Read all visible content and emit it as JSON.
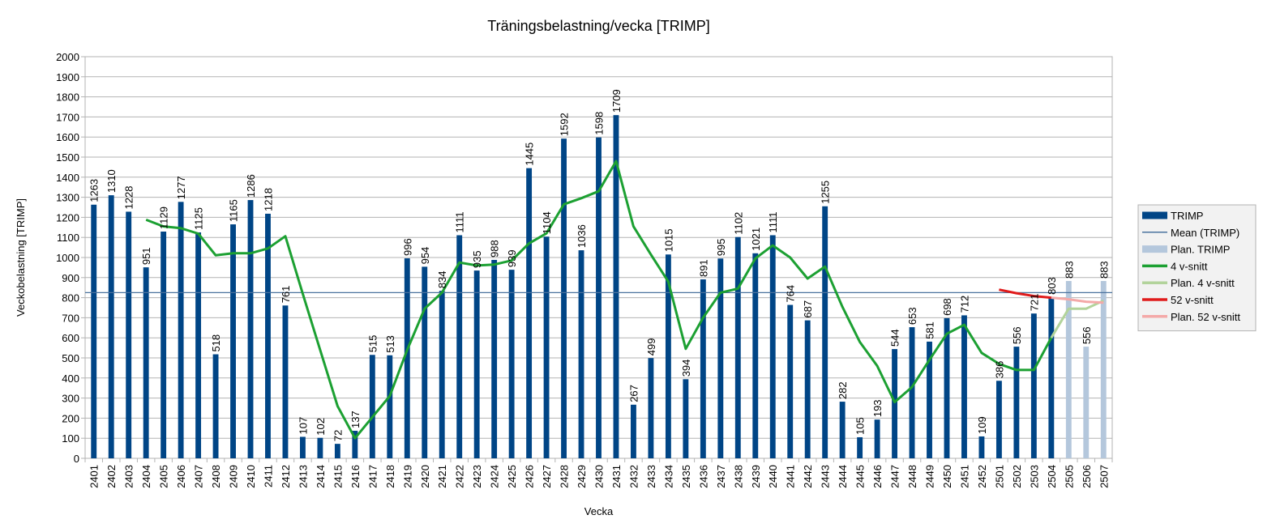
{
  "chart_data": {
    "type": "bar",
    "title": "Träningsbelastning/vecka [TRIMP]",
    "xlabel": "Vecka",
    "ylabel": "Veckobelastning [TRIMP]",
    "ylim": [
      0,
      2000
    ],
    "ytick_step": 100,
    "grid": true,
    "legend_position": "right",
    "categories": [
      "2401",
      "2402",
      "2403",
      "2404",
      "2405",
      "2406",
      "2407",
      "2408",
      "2409",
      "2410",
      "2411",
      "2412",
      "2413",
      "2414",
      "2415",
      "2416",
      "2417",
      "2418",
      "2419",
      "2420",
      "2421",
      "2422",
      "2423",
      "2424",
      "2425",
      "2426",
      "2427",
      "2428",
      "2429",
      "2430",
      "2431",
      "2432",
      "2433",
      "2434",
      "2435",
      "2436",
      "2437",
      "2438",
      "2439",
      "2440",
      "2441",
      "2442",
      "2443",
      "2444",
      "2445",
      "2446",
      "2447",
      "2448",
      "2449",
      "2450",
      "2451",
      "2452",
      "2501",
      "2502",
      "2503",
      "2504",
      "2505",
      "2506",
      "2507"
    ],
    "series": [
      {
        "name": "TRIMP",
        "kind": "bar",
        "color": "#004586",
        "values": [
          1263,
          1310,
          1228,
          951,
          1129,
          1277,
          1125,
          518,
          1165,
          1286,
          1218,
          761,
          107,
          102,
          72,
          137,
          515,
          513,
          996,
          954,
          834,
          1111,
          935,
          988,
          939,
          1445,
          1104,
          1592,
          1036,
          1598,
          1709,
          267,
          499,
          1015,
          394,
          891,
          995,
          1102,
          1021,
          1111,
          764,
          687,
          1255,
          282,
          105,
          193,
          544,
          653,
          581,
          698,
          712,
          109,
          386,
          556,
          721,
          803,
          null,
          null,
          null
        ]
      },
      {
        "name": "Plan. TRIMP",
        "kind": "bar",
        "color": "#b4c7dc",
        "values": [
          null,
          null,
          null,
          null,
          null,
          null,
          null,
          null,
          null,
          null,
          null,
          null,
          null,
          null,
          null,
          null,
          null,
          null,
          null,
          null,
          null,
          null,
          null,
          null,
          null,
          null,
          null,
          null,
          null,
          null,
          null,
          null,
          null,
          null,
          null,
          null,
          null,
          null,
          null,
          null,
          null,
          null,
          null,
          null,
          null,
          null,
          null,
          null,
          null,
          null,
          null,
          null,
          null,
          null,
          null,
          null,
          883,
          556,
          883
        ]
      },
      {
        "name": "Mean (TRIMP)",
        "kind": "hline",
        "color": "#4a729e",
        "value": 825
      },
      {
        "name": "4 v-snitt",
        "kind": "line",
        "color": "#1ca032",
        "values": [
          null,
          null,
          null,
          1188,
          1155,
          1146,
          1119,
          1011,
          1021,
          1021,
          1045,
          1106,
          820,
          540,
          260,
          100,
          205,
          310,
          540,
          745,
          825,
          975,
          960,
          965,
          985,
          1070,
          1120,
          1265,
          1295,
          1330,
          1480,
          1155,
          1015,
          880,
          545,
          700,
          825,
          845,
          995,
          1060,
          1000,
          895,
          955,
          755,
          580,
          460,
          280,
          355,
          490,
          620,
          665,
          525,
          470,
          440,
          440,
          600,
          null,
          null,
          null
        ]
      },
      {
        "name": "Plan. 4 v-snitt",
        "kind": "line",
        "color": "#b2d39b",
        "values": [
          null,
          null,
          null,
          null,
          null,
          null,
          null,
          null,
          null,
          null,
          null,
          null,
          null,
          null,
          null,
          null,
          null,
          null,
          null,
          null,
          null,
          null,
          null,
          null,
          null,
          null,
          null,
          null,
          null,
          null,
          null,
          null,
          null,
          null,
          null,
          null,
          null,
          null,
          null,
          null,
          null,
          null,
          null,
          null,
          null,
          null,
          null,
          null,
          null,
          null,
          null,
          null,
          null,
          null,
          null,
          600,
          745,
          745,
          785
        ]
      },
      {
        "name": "52 v-snitt",
        "kind": "line",
        "color": "#e01b1b",
        "values": [
          null,
          null,
          null,
          null,
          null,
          null,
          null,
          null,
          null,
          null,
          null,
          null,
          null,
          null,
          null,
          null,
          null,
          null,
          null,
          null,
          null,
          null,
          null,
          null,
          null,
          null,
          null,
          null,
          null,
          null,
          null,
          null,
          null,
          null,
          null,
          null,
          null,
          null,
          null,
          null,
          null,
          null,
          null,
          null,
          null,
          null,
          null,
          null,
          null,
          null,
          null,
          null,
          840,
          822,
          808,
          800,
          null,
          null,
          null
        ]
      },
      {
        "name": "Plan. 52 v-snitt",
        "kind": "line",
        "color": "#f4a9a8",
        "values": [
          null,
          null,
          null,
          null,
          null,
          null,
          null,
          null,
          null,
          null,
          null,
          null,
          null,
          null,
          null,
          null,
          null,
          null,
          null,
          null,
          null,
          null,
          null,
          null,
          null,
          null,
          null,
          null,
          null,
          null,
          null,
          null,
          null,
          null,
          null,
          null,
          null,
          null,
          null,
          null,
          null,
          null,
          null,
          null,
          null,
          null,
          null,
          null,
          null,
          null,
          null,
          null,
          null,
          null,
          null,
          800,
          792,
          780,
          775
        ]
      }
    ],
    "legend": [
      "TRIMP",
      "Mean (TRIMP)",
      "Plan. TRIMP",
      "4 v-snitt",
      "Plan. 4 v-snitt",
      "52 v-snitt",
      "Plan. 52 v-snitt"
    ]
  }
}
